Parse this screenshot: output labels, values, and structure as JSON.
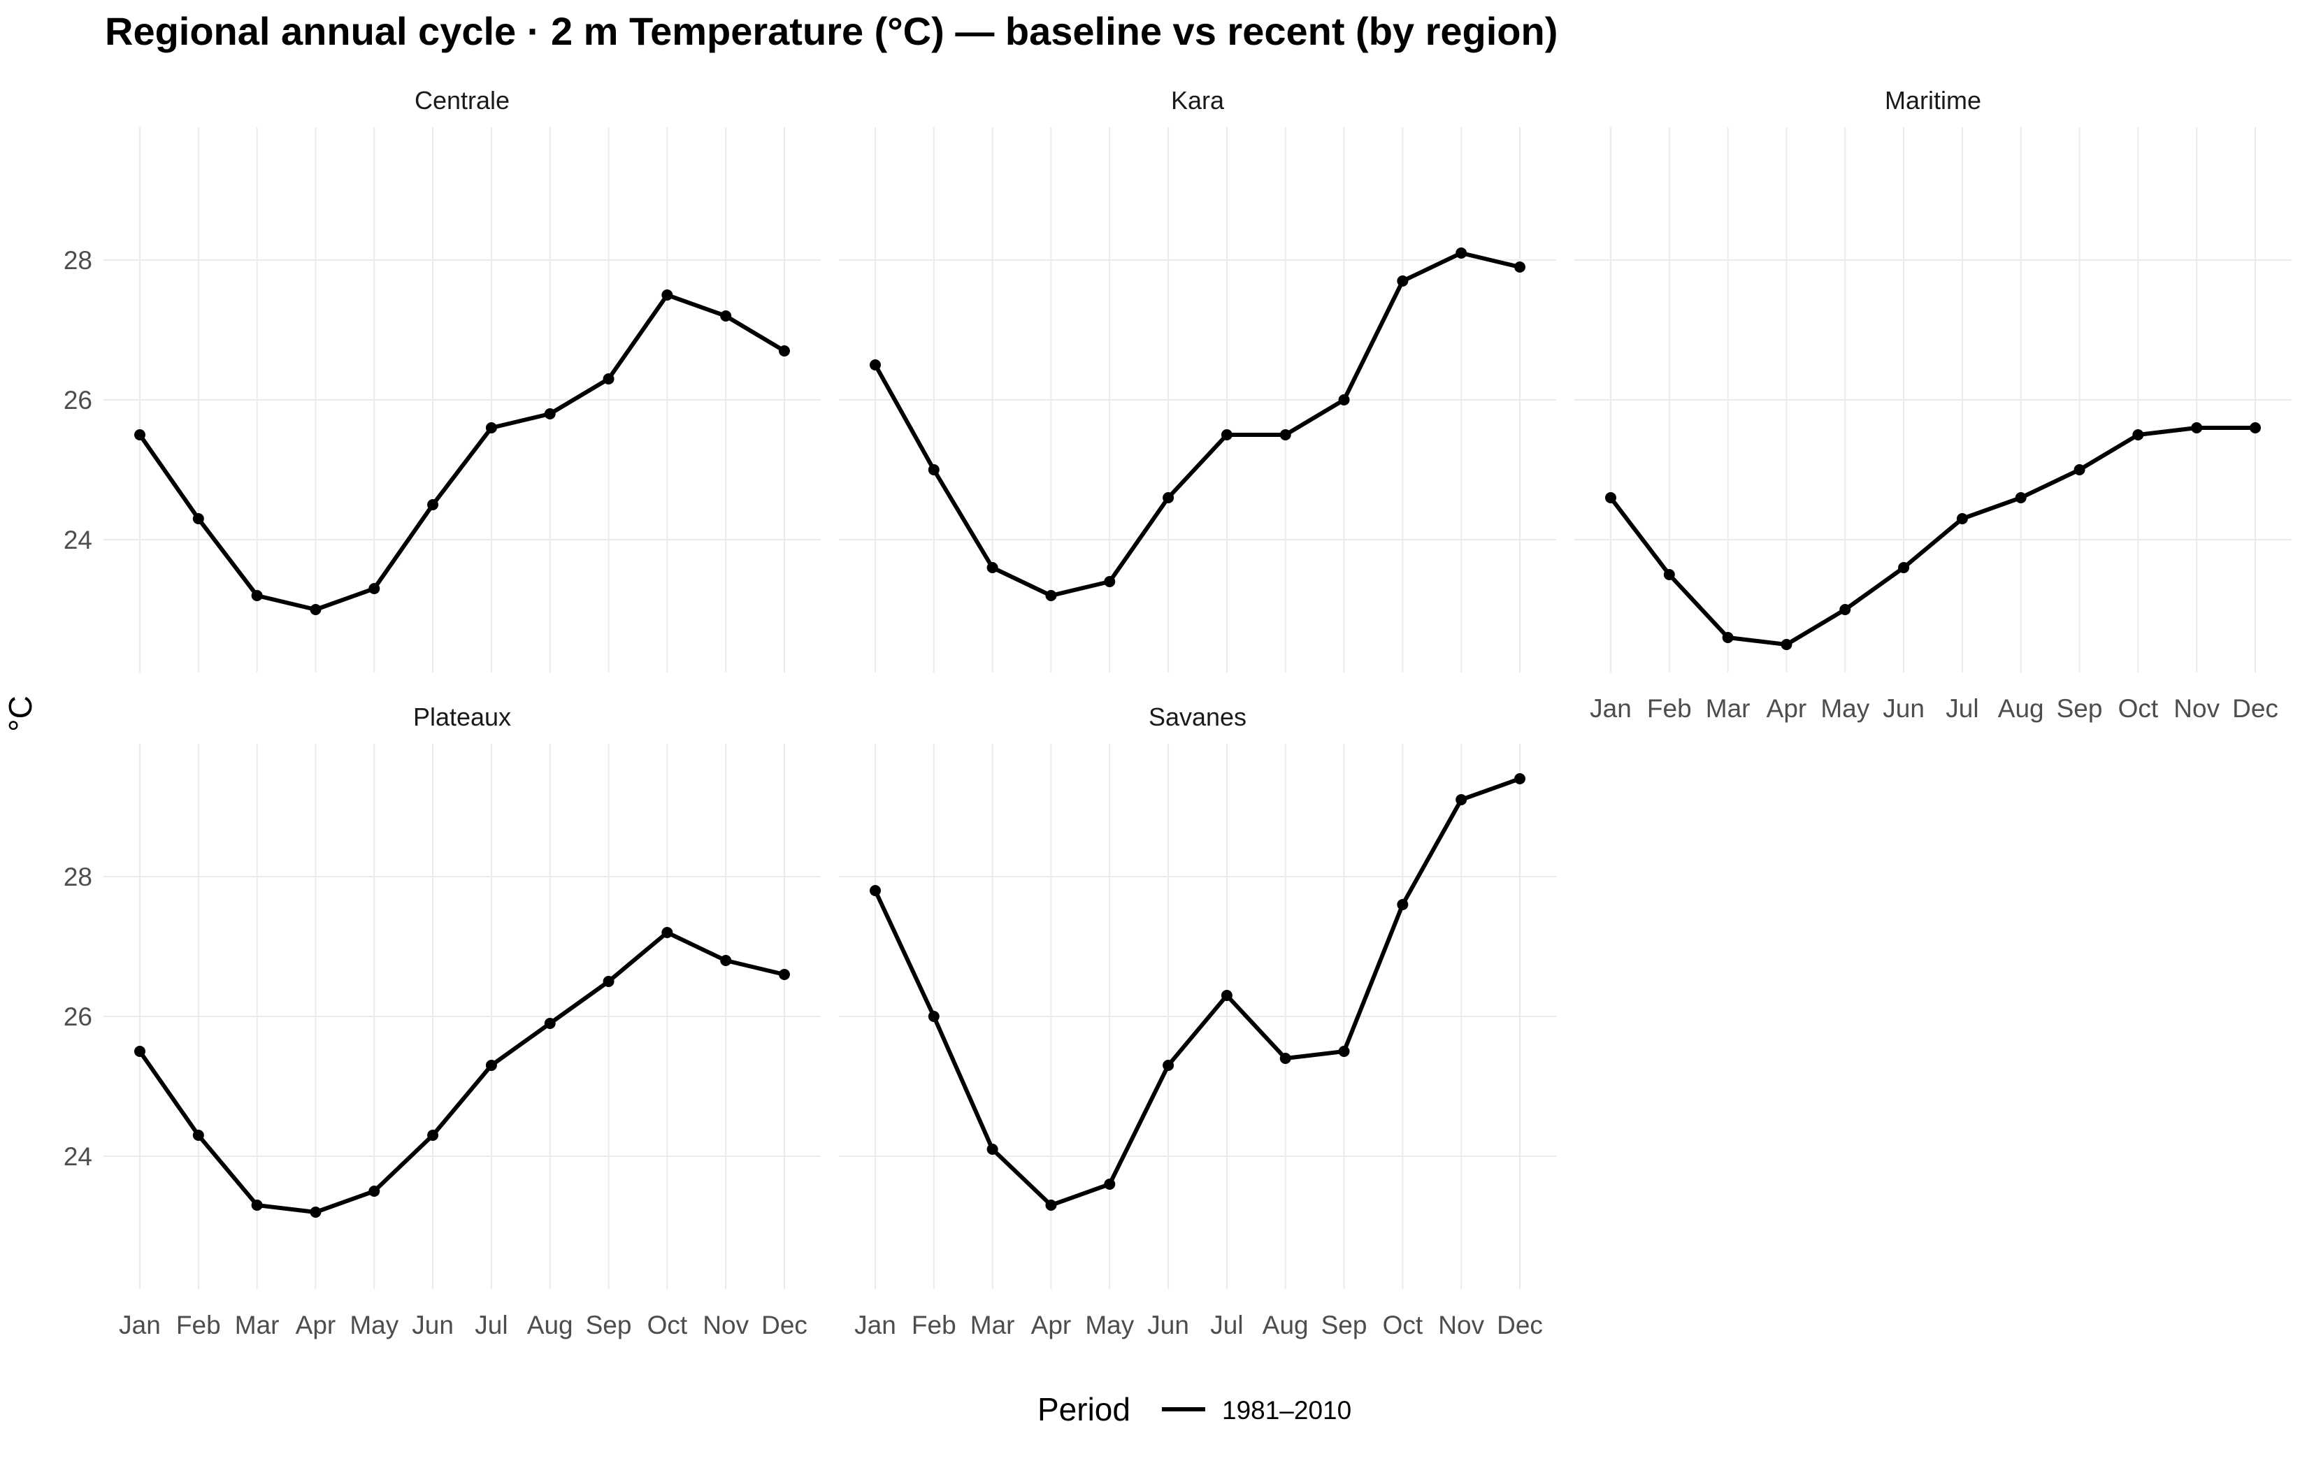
{
  "chart_data": {
    "type": "line",
    "title": "Regional annual cycle · 2 m Temperature (°C) — baseline vs recent (by region)",
    "ylabel": "°C",
    "xlabel": "",
    "ylim": [
      22.1,
      29.9
    ],
    "y_ticks": [
      24,
      26,
      28
    ],
    "categories": [
      "Jan",
      "Feb",
      "Mar",
      "Apr",
      "May",
      "Jun",
      "Jul",
      "Aug",
      "Sep",
      "Oct",
      "Nov",
      "Dec"
    ],
    "grid": true,
    "legend": {
      "title": "Period",
      "position": "bottom",
      "entries": [
        "1981–2010"
      ]
    },
    "series_color": "#000000",
    "panels": [
      {
        "name": "Centrale",
        "series": [
          {
            "name": "1981–2010",
            "values": [
              25.5,
              24.3,
              23.2,
              23.0,
              23.3,
              24.5,
              25.6,
              25.8,
              26.3,
              27.5,
              27.2,
              26.7
            ]
          }
        ]
      },
      {
        "name": "Kara",
        "series": [
          {
            "name": "1981–2010",
            "values": [
              26.5,
              25.0,
              23.6,
              23.2,
              23.4,
              24.6,
              25.5,
              25.5,
              26.0,
              27.7,
              28.1,
              27.9
            ]
          }
        ]
      },
      {
        "name": "Maritime",
        "series": [
          {
            "name": "1981–2010",
            "values": [
              24.6,
              23.5,
              22.6,
              22.5,
              23.0,
              23.6,
              24.3,
              24.6,
              25.0,
              25.5,
              25.6,
              25.6
            ]
          }
        ]
      },
      {
        "name": "Plateaux",
        "series": [
          {
            "name": "1981–2010",
            "values": [
              25.5,
              24.3,
              23.3,
              23.2,
              23.5,
              24.3,
              25.3,
              25.9,
              26.5,
              27.2,
              26.8,
              26.6
            ]
          }
        ]
      },
      {
        "name": "Savanes",
        "series": [
          {
            "name": "1981–2010",
            "values": [
              27.8,
              26.0,
              24.1,
              23.3,
              23.6,
              25.3,
              26.3,
              25.4,
              25.5,
              27.6,
              29.1,
              29.4
            ]
          }
        ]
      }
    ]
  }
}
